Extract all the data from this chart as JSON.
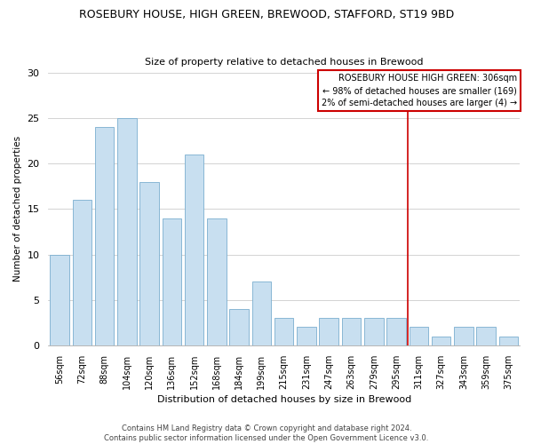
{
  "title": "ROSEBURY HOUSE, HIGH GREEN, BREWOOD, STAFFORD, ST19 9BD",
  "subtitle": "Size of property relative to detached houses in Brewood",
  "xlabel": "Distribution of detached houses by size in Brewood",
  "ylabel": "Number of detached properties",
  "bar_labels": [
    "56sqm",
    "72sqm",
    "88sqm",
    "104sqm",
    "120sqm",
    "136sqm",
    "152sqm",
    "168sqm",
    "184sqm",
    "199sqm",
    "215sqm",
    "231sqm",
    "247sqm",
    "263sqm",
    "279sqm",
    "295sqm",
    "311sqm",
    "327sqm",
    "343sqm",
    "359sqm",
    "375sqm"
  ],
  "bar_values": [
    10,
    16,
    24,
    25,
    18,
    14,
    21,
    14,
    4,
    7,
    3,
    2,
    3,
    3,
    3,
    3,
    2,
    1,
    2,
    2,
    1
  ],
  "bar_color": "#c8dff0",
  "bar_edge_color": "#7aaecf",
  "reference_line_x": 15.5,
  "reference_line_color": "#cc0000",
  "ylim": [
    0,
    30
  ],
  "yticks": [
    0,
    5,
    10,
    15,
    20,
    25,
    30
  ],
  "legend_title": "ROSEBURY HOUSE HIGH GREEN: 306sqm",
  "legend_line1": "← 98% of detached houses are smaller (169)",
  "legend_line2": "2% of semi-detached houses are larger (4) →",
  "legend_box_color": "#ffffff",
  "legend_box_edge_color": "#cc0000",
  "footer_line1": "Contains HM Land Registry data © Crown copyright and database right 2024.",
  "footer_line2": "Contains public sector information licensed under the Open Government Licence v3.0."
}
